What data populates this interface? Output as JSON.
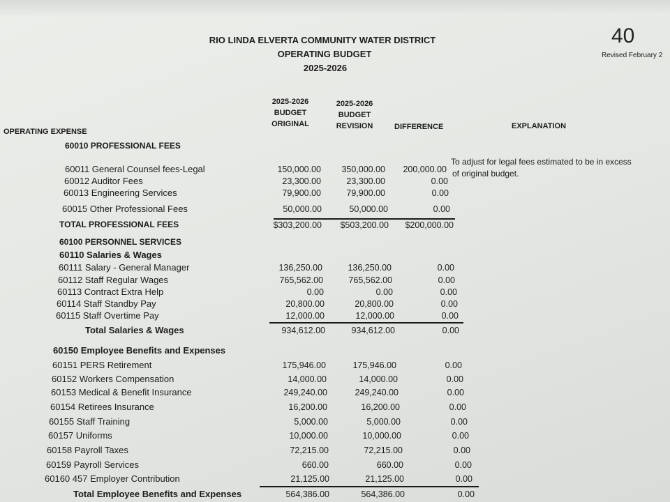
{
  "header": {
    "title": "RIO LINDA ELVERTA COMMUNITY WATER DISTRICT",
    "subtitle": "OPERATING BUDGET",
    "year": "2025-2026",
    "page_number": "40",
    "revised_note": "Revised February 2"
  },
  "columns": {
    "original": [
      "2025-2026",
      "BUDGET",
      "ORIGINAL"
    ],
    "revision": [
      "2025-2026",
      "BUDGET",
      "REVISION"
    ],
    "difference": "DIFFERENCE",
    "explanation": "EXPLANATION"
  },
  "section": "OPERATING EXPENSE",
  "rows": [
    {
      "label": "60010 PROFESSIONAL FEES",
      "type": "heading"
    },
    {
      "label": "60011  General Counsel fees-Legal",
      "original": "150,000.00",
      "revision": "350,000.00",
      "difference": "200,000.00"
    },
    {
      "label": "60012  Auditor Fees",
      "original": "23,300.00",
      "revision": "23,300.00",
      "difference": "0.00"
    },
    {
      "label": "60013  Engineering Services",
      "original": "79,900.00",
      "revision": "79,900.00",
      "difference": "0.00"
    },
    {
      "label": "60015  Other Professional Fees",
      "original": "50,000.00",
      "revision": "50,000.00",
      "difference": "0.00"
    },
    {
      "label": "TOTAL PROFESSIONAL FEES",
      "type": "total",
      "original": "$303,200.00",
      "revision": "$503,200.00",
      "difference": "$200,000.00"
    },
    {
      "label": "60100 PERSONNEL SERVICES",
      "type": "heading"
    },
    {
      "label": "60110  Salaries & Wages",
      "type": "heading"
    },
    {
      "label": "60111  Salary - General Manager",
      "original": "136,250.00",
      "revision": "136,250.00",
      "difference": "0.00"
    },
    {
      "label": "60112  Staff Regular Wages",
      "original": "765,562.00",
      "revision": "765,562.00",
      "difference": "0.00"
    },
    {
      "label": "60113  Contract Extra Help",
      "original": "0.00",
      "revision": "0.00",
      "difference": "0.00"
    },
    {
      "label": "60114  Staff Standby Pay",
      "original": "20,800.00",
      "revision": "20,800.00",
      "difference": "0.00"
    },
    {
      "label": "60115  Staff Overtime Pay",
      "original": "12,000.00",
      "revision": "12,000.00",
      "difference": "0.00"
    },
    {
      "label": "Total Salaries & Wages",
      "type": "total",
      "original": "934,612.00",
      "revision": "934,612.00",
      "difference": "0.00"
    },
    {
      "label": "60150  Employee Benefits and Expenses",
      "type": "heading"
    },
    {
      "label": "60151  PERS Retirement",
      "original": "175,946.00",
      "revision": "175,946.00",
      "difference": "0.00"
    },
    {
      "label": "60152  Workers Compensation",
      "original": "14,000.00",
      "revision": "14,000.00",
      "difference": "0.00"
    },
    {
      "label": "60153  Medical & Benefit Insurance",
      "original": "249,240.00",
      "revision": "249,240.00",
      "difference": "0.00"
    },
    {
      "label": "60154  Retirees Insurance",
      "original": "16,200.00",
      "revision": "16,200.00",
      "difference": "0.00"
    },
    {
      "label": "60155  Staff Training",
      "original": "5,000.00",
      "revision": "5,000.00",
      "difference": "0.00"
    },
    {
      "label": "60157  Uniforms",
      "original": "10,000.00",
      "revision": "10,000.00",
      "difference": "0.00"
    },
    {
      "label": "60158  Payroll Taxes",
      "original": "72,215.00",
      "revision": "72,215.00",
      "difference": "0.00"
    },
    {
      "label": "60159  Payroll Services",
      "original": "660.00",
      "revision": "660.00",
      "difference": "0.00"
    },
    {
      "label": "60160  457 Employer Contribution",
      "original": "21,125.00",
      "revision": "21,125.00",
      "difference": "0.00"
    },
    {
      "label": "Total Employee Benefits and Expenses",
      "type": "total",
      "original": "564,386.00",
      "revision": "564,386.00",
      "difference": "0.00"
    }
  ],
  "explanations": [
    "To adjust for legal fees estimated to be in excess",
    "of original budget."
  ]
}
